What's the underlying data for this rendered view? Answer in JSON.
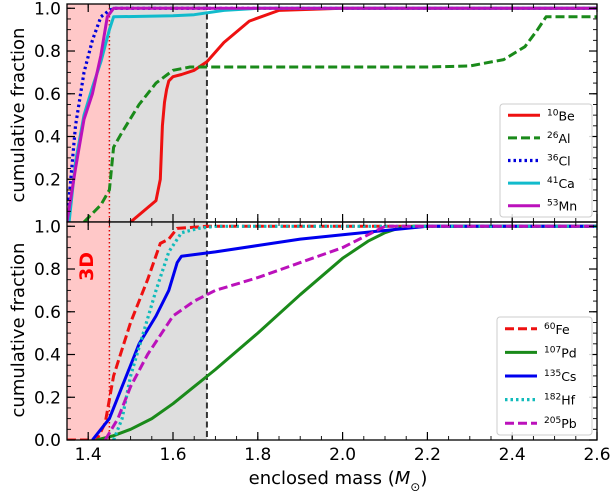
{
  "chart_data": [
    {
      "type": "line",
      "panel": "top",
      "ylabel": "cumulative fraction",
      "xlim": [
        1.35,
        2.6
      ],
      "ylim": [
        0.0,
        1.02
      ],
      "x_ticks": [
        "1.4",
        "1.6",
        "1.8",
        "2.0",
        "2.2",
        "2.4",
        "2.6"
      ],
      "y_ticks": [
        "0.2",
        "0.4",
        "0.6",
        "0.8",
        "1.0"
      ],
      "shaded_regions": [
        {
          "x0": 1.35,
          "x1": 1.45,
          "color": "#ffc8c8"
        },
        {
          "x0": 1.45,
          "x1": 1.68,
          "color": "#dedede"
        }
      ],
      "vlines": [
        {
          "x": 1.45,
          "color": "#e00000",
          "style": "dotted"
        },
        {
          "x": 1.68,
          "color": "#333333",
          "style": "dashed"
        }
      ],
      "legend_position": "lower-right",
      "series": [
        {
          "name": "Be",
          "mass_number": "10",
          "color": "#ee1111",
          "style": "solid",
          "x": [
            1.5,
            1.56,
            1.57,
            1.575,
            1.58,
            1.585,
            1.59,
            1.6,
            1.62,
            1.65,
            1.68,
            1.72,
            1.78,
            1.85,
            2.0,
            2.6
          ],
          "y": [
            0.0,
            0.1,
            0.2,
            0.45,
            0.56,
            0.62,
            0.66,
            0.68,
            0.69,
            0.71,
            0.75,
            0.84,
            0.94,
            0.99,
            1.0,
            1.0
          ]
        },
        {
          "name": "Al",
          "mass_number": "26",
          "color": "#1a8a1a",
          "style": "dashed",
          "x": [
            1.39,
            1.43,
            1.45,
            1.46,
            1.48,
            1.52,
            1.56,
            1.6,
            1.64,
            1.7,
            1.9,
            2.2,
            2.3,
            2.38,
            2.43,
            2.46,
            2.48,
            2.6
          ],
          "y": [
            0.0,
            0.08,
            0.15,
            0.35,
            0.42,
            0.55,
            0.65,
            0.71,
            0.725,
            0.725,
            0.725,
            0.725,
            0.73,
            0.76,
            0.82,
            0.9,
            0.96,
            0.96
          ]
        },
        {
          "name": "Cl",
          "mass_number": "36",
          "color": "#0000dd",
          "style": "dotted",
          "x": [
            1.35,
            1.37,
            1.39,
            1.41,
            1.43,
            1.45,
            1.46,
            2.6
          ],
          "y": [
            0.0,
            0.45,
            0.7,
            0.85,
            0.96,
            0.99,
            1.0,
            1.0
          ]
        },
        {
          "name": "Ca",
          "mass_number": "41",
          "color": "#11bbcc",
          "style": "solid",
          "x": [
            1.355,
            1.37,
            1.39,
            1.41,
            1.43,
            1.45,
            1.46,
            1.6,
            1.65,
            1.72,
            1.8,
            2.6
          ],
          "y": [
            0.0,
            0.28,
            0.5,
            0.63,
            0.75,
            0.9,
            0.96,
            0.965,
            0.97,
            0.99,
            1.0,
            1.0
          ]
        },
        {
          "name": "Mn",
          "mass_number": "53",
          "color": "#bb11bb",
          "style": "solid",
          "x": [
            1.35,
            1.37,
            1.39,
            1.41,
            1.43,
            1.445,
            1.46,
            2.6
          ],
          "y": [
            0.0,
            0.25,
            0.48,
            0.6,
            0.78,
            0.96,
            1.0,
            1.0
          ]
        }
      ]
    },
    {
      "type": "line",
      "panel": "bottom",
      "ylabel": "cumulative fraction",
      "xlabel": "enclosed mass (M☉)",
      "xlabel_text": "enclosed mass (",
      "xlabel_symbol": "M",
      "xlabel_sub": "⊙",
      "xlabel_close": ")",
      "xlim": [
        1.35,
        2.6
      ],
      "ylim": [
        0.0,
        1.02
      ],
      "x_ticks": [
        "1.4",
        "1.6",
        "1.8",
        "2.0",
        "2.2",
        "2.4",
        "2.6"
      ],
      "y_ticks": [
        "0.0",
        "0.2",
        "0.4",
        "0.6",
        "0.8",
        "1.0"
      ],
      "annotation": "3D",
      "shaded_regions": [
        {
          "x0": 1.35,
          "x1": 1.45,
          "color": "#ffc8c8"
        },
        {
          "x0": 1.45,
          "x1": 1.68,
          "color": "#dedede"
        }
      ],
      "vlines": [
        {
          "x": 1.45,
          "color": "#e00000",
          "style": "dotted"
        },
        {
          "x": 1.68,
          "color": "#333333",
          "style": "dashed"
        }
      ],
      "legend_position": "lower-right",
      "series": [
        {
          "name": "Fe",
          "mass_number": "60",
          "color": "#ee1111",
          "style": "dashed",
          "x": [
            1.35,
            1.42,
            1.44,
            1.46,
            1.5,
            1.54,
            1.57,
            1.59,
            1.61,
            1.68,
            2.6
          ],
          "y": [
            0.0,
            0.0,
            0.08,
            0.3,
            0.55,
            0.75,
            0.92,
            0.94,
            0.99,
            1.0,
            1.0
          ]
        },
        {
          "name": "Pd",
          "mass_number": "107",
          "color": "#1a8a1a",
          "style": "solid",
          "x": [
            1.42,
            1.46,
            1.5,
            1.55,
            1.6,
            1.65,
            1.7,
            1.8,
            1.9,
            2.0,
            2.06,
            2.1,
            2.13,
            2.17,
            2.6
          ],
          "y": [
            0.0,
            0.02,
            0.05,
            0.1,
            0.17,
            0.25,
            0.33,
            0.5,
            0.68,
            0.85,
            0.93,
            0.97,
            0.99,
            1.0,
            1.0
          ]
        },
        {
          "name": "Cs",
          "mass_number": "135",
          "color": "#0000ee",
          "style": "solid",
          "x": [
            1.41,
            1.43,
            1.45,
            1.48,
            1.52,
            1.56,
            1.59,
            1.61,
            1.62,
            1.7,
            1.8,
            1.9,
            2.0,
            2.1,
            2.2,
            2.6
          ],
          "y": [
            0.0,
            0.05,
            0.1,
            0.25,
            0.45,
            0.58,
            0.7,
            0.83,
            0.86,
            0.88,
            0.91,
            0.94,
            0.96,
            0.98,
            1.0,
            1.0
          ]
        },
        {
          "name": "Hf",
          "mass_number": "182",
          "color": "#11bbbb",
          "style": "dotted",
          "x": [
            1.46,
            1.48,
            1.5,
            1.53,
            1.56,
            1.59,
            1.62,
            1.66,
            1.7,
            2.6
          ],
          "y": [
            0.0,
            0.1,
            0.3,
            0.5,
            0.7,
            0.88,
            0.97,
            0.99,
            1.0,
            1.0
          ]
        },
        {
          "name": "Pb",
          "mass_number": "205",
          "color": "#bb11bb",
          "style": "dashed",
          "x": [
            1.44,
            1.47,
            1.5,
            1.54,
            1.58,
            1.6,
            1.65,
            1.7,
            1.8,
            1.9,
            2.0,
            2.06,
            2.1,
            2.6
          ],
          "y": [
            0.0,
            0.1,
            0.25,
            0.4,
            0.52,
            0.58,
            0.65,
            0.7,
            0.76,
            0.83,
            0.9,
            0.96,
            1.0,
            1.0
          ]
        }
      ]
    }
  ]
}
